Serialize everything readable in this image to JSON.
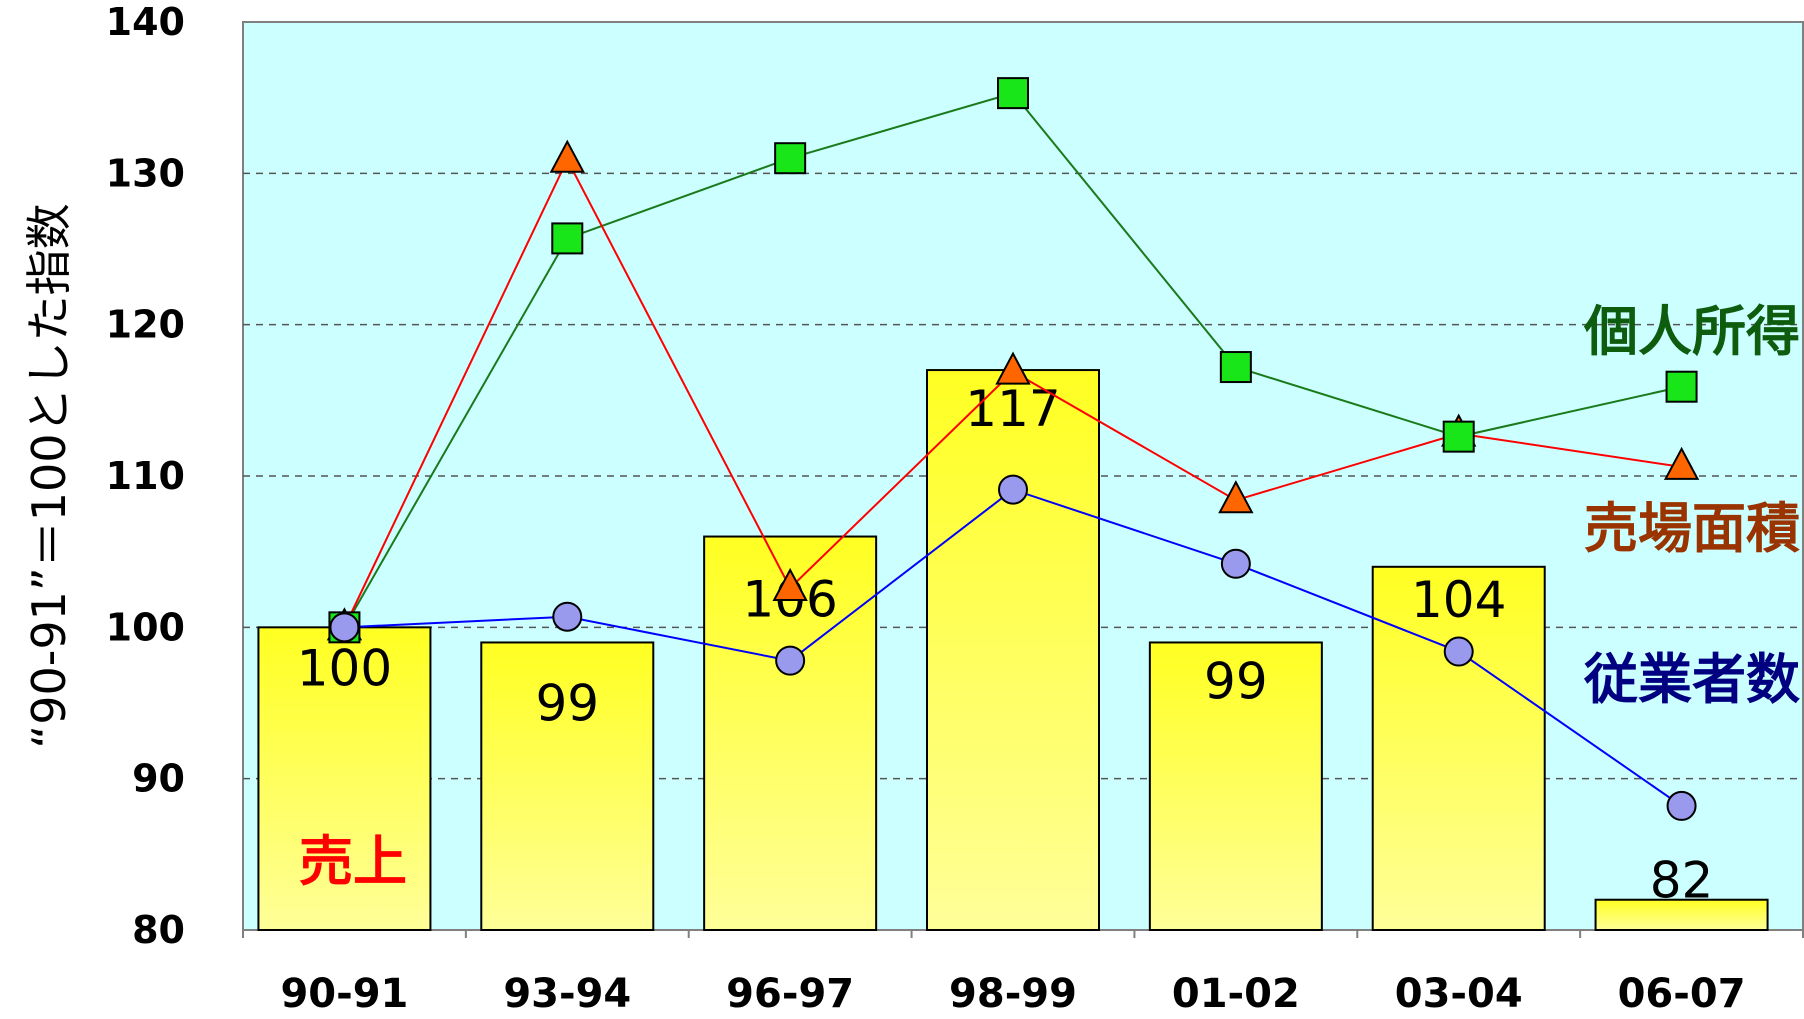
{
  "chart_data": {
    "type": "bar",
    "categories": [
      "90-91",
      "93-94",
      "96-97",
      "98-99",
      "01-02",
      "03-04",
      "06-07"
    ],
    "ylabel": "“90-91”＝100とした指数",
    "ylim": [
      80,
      140
    ],
    "yticks": [
      "80",
      "90",
      "100",
      "110",
      "120",
      "130",
      "140"
    ],
    "grid": true,
    "bars": {
      "name": "売上",
      "values": [
        100,
        99,
        106,
        117,
        99,
        104,
        82
      ],
      "labels": [
        "100",
        "99",
        "106",
        "117",
        "99",
        "104",
        "82"
      ],
      "color": "#ffff33"
    },
    "series": [
      {
        "name": "個人所得",
        "type": "line",
        "marker": "square",
        "values": [
          100,
          125.7,
          131,
          135.3,
          117.2,
          112.6,
          115.9
        ],
        "color": "#1a7a1a",
        "marker_color": "#19e619",
        "label_color": "#0e5c0e"
      },
      {
        "name": "売場面積",
        "type": "line",
        "marker": "triangle",
        "values": [
          100,
          130.9,
          102.6,
          116.9,
          108.4,
          112.8,
          110.6
        ],
        "color": "#ff0000",
        "marker_color": "#ff6600",
        "label_color": "#993300"
      },
      {
        "name": "従業者数",
        "type": "line",
        "marker": "circle",
        "values": [
          100,
          100.7,
          97.8,
          109.1,
          104.2,
          98.4,
          88.2
        ],
        "color": "#0000ff",
        "marker_color": "#9999ee",
        "label_color": "#000080"
      }
    ],
    "legend_placement": "inline-right",
    "colors": {
      "plot_background": "#ccffff",
      "grid": "#555555",
      "bar_label_sales": "#ff0000"
    }
  }
}
